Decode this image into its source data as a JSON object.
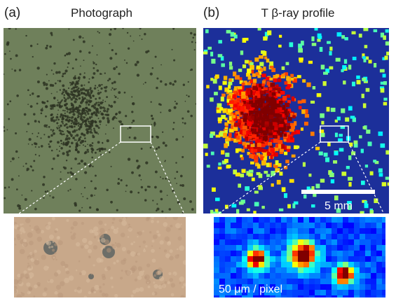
{
  "panel_a": {
    "label": "(a)",
    "title": "Photograph"
  },
  "panel_b": {
    "label": "(b)",
    "title": "T β-ray profile",
    "scale_bar": "5 mm",
    "zoom_scale": "50 μm / pixel"
  }
}
